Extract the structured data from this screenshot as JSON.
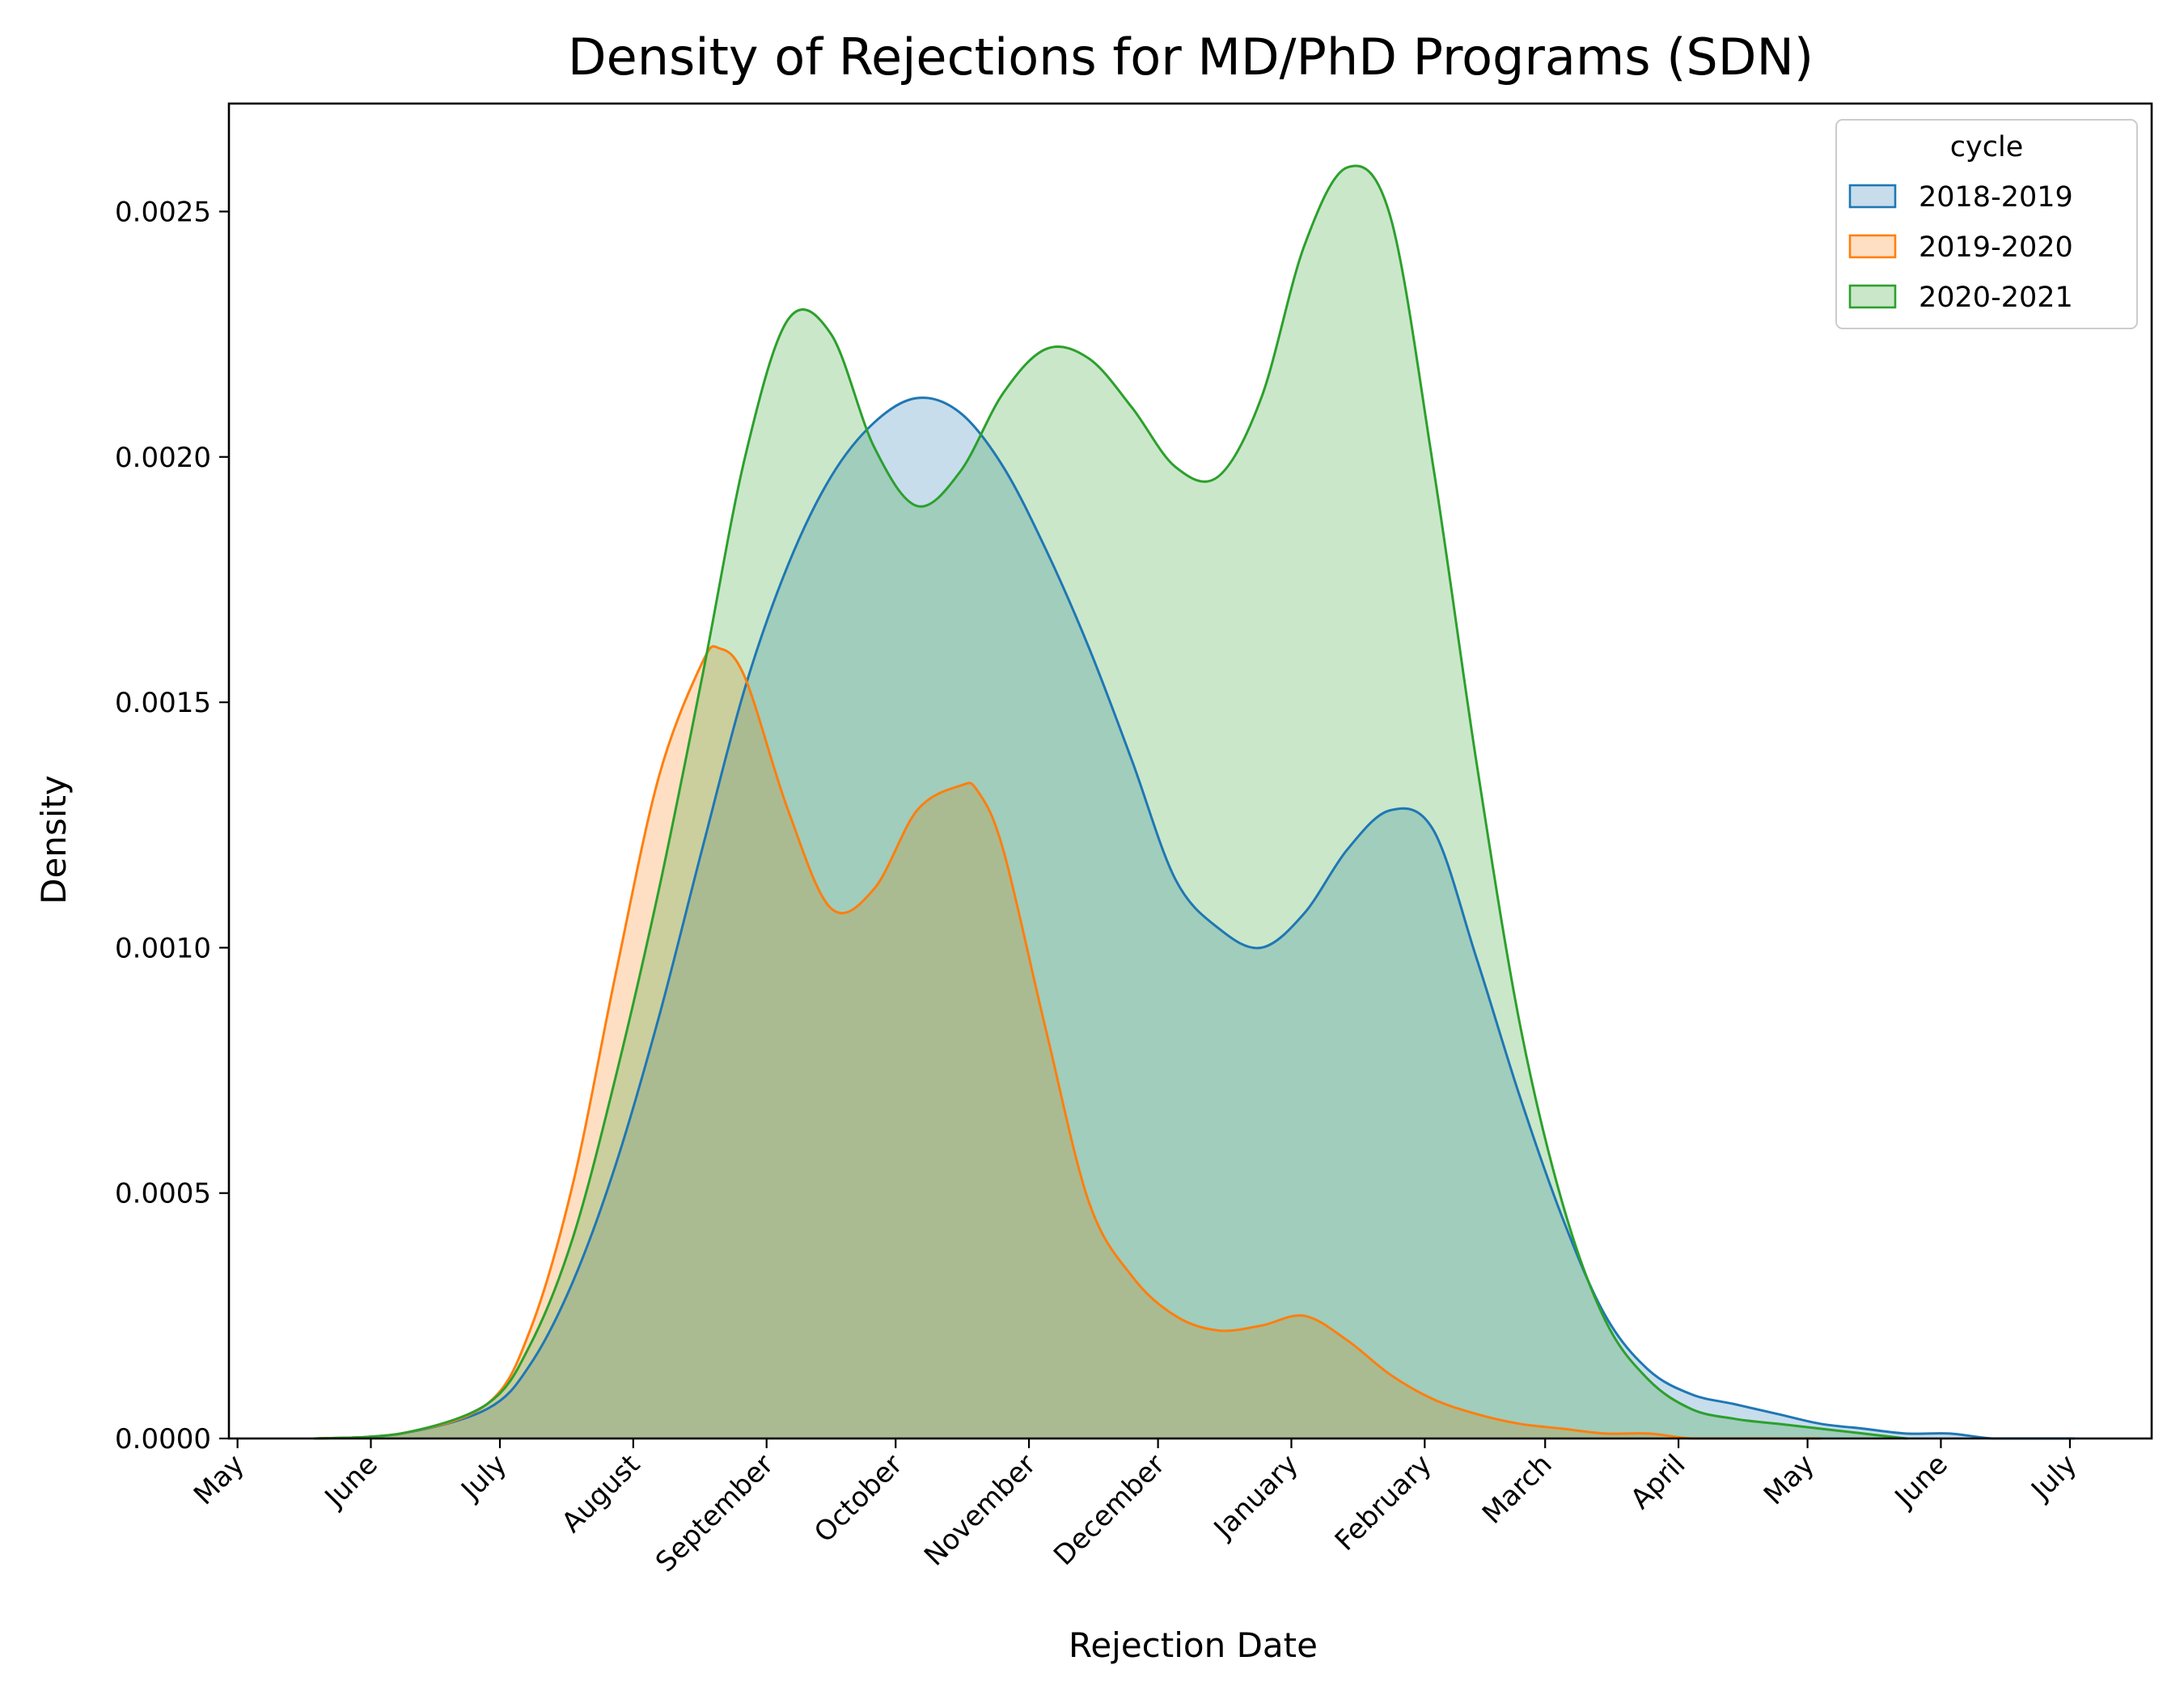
{
  "chart_data": {
    "type": "area",
    "title": "Density of Rejections for MD/PhD Programs (SDN)",
    "xlabel": "Rejection Date",
    "ylabel": "Density",
    "x_tick_labels": [
      "May",
      "June",
      "July",
      "August",
      "September",
      "October",
      "November",
      "December",
      "January",
      "February",
      "March",
      "April",
      "May",
      "June",
      "July"
    ],
    "x_tick_dates": [
      "2020-05-01",
      "2020-06-01",
      "2020-07-01",
      "2020-08-01",
      "2020-09-01",
      "2020-10-01",
      "2020-11-01",
      "2020-12-01",
      "2021-01-01",
      "2021-02-01",
      "2021-03-01",
      "2021-04-01",
      "2021-05-01",
      "2021-06-01",
      "2021-07-01"
    ],
    "xlim": [
      "2020-04-29",
      "2021-07-20"
    ],
    "ylim": [
      0,
      0.00272
    ],
    "y_ticks": [
      0.0,
      0.0005,
      0.001,
      0.0015,
      0.002,
      0.0025
    ],
    "y_tick_labels": [
      "0.0000",
      "0.0005",
      "0.0010",
      "0.0015",
      "0.0020",
      "0.0025"
    ],
    "grid": false,
    "legend": {
      "title": "cycle",
      "placement": "top-right"
    },
    "series": [
      {
        "name": "2018-2019",
        "color": "#1f77b4",
        "x": [
          "2020-05-19",
          "2020-06-08",
          "2020-06-28",
          "2020-07-08",
          "2020-07-18",
          "2020-07-28",
          "2020-08-07",
          "2020-08-17",
          "2020-08-27",
          "2020-09-06",
          "2020-09-16",
          "2020-09-26",
          "2020-10-06",
          "2020-10-16",
          "2020-10-26",
          "2020-11-05",
          "2020-11-15",
          "2020-11-25",
          "2020-12-05",
          "2020-12-15",
          "2020-12-25",
          "2021-01-04",
          "2021-01-14",
          "2021-01-24",
          "2021-02-03",
          "2021-02-13",
          "2021-02-23",
          "2021-03-05",
          "2021-03-15",
          "2021-03-25",
          "2021-04-04",
          "2021-04-14",
          "2021-04-24",
          "2021-05-04",
          "2021-05-14",
          "2021-05-24",
          "2021-06-03",
          "2021-06-13",
          "2021-06-23",
          "2021-07-02"
        ],
        "y": [
          0.0,
          1e-05,
          6e-05,
          0.00015,
          0.00032,
          0.00056,
          0.00086,
          0.0012,
          0.00153,
          0.00178,
          0.00196,
          0.00207,
          0.00212,
          0.00209,
          0.00198,
          0.00181,
          0.00161,
          0.00138,
          0.00114,
          0.00104,
          0.001,
          0.00107,
          0.0012,
          0.00128,
          0.00124,
          0.00098,
          0.0007,
          0.00045,
          0.00025,
          0.00014,
          9e-05,
          7e-05,
          5e-05,
          3e-05,
          2e-05,
          1e-05,
          1e-05,
          0.0,
          0.0,
          0.0
        ]
      },
      {
        "name": "2019-2020",
        "color": "#ff7f0e",
        "x": [
          "2020-05-19",
          "2020-06-08",
          "2020-06-28",
          "2020-07-08",
          "2020-07-18",
          "2020-07-28",
          "2020-08-07",
          "2020-08-17",
          "2020-08-21",
          "2020-08-27",
          "2020-09-06",
          "2020-09-16",
          "2020-09-26",
          "2020-10-06",
          "2020-10-16",
          "2020-10-20",
          "2020-10-26",
          "2020-11-05",
          "2020-11-15",
          "2020-11-25",
          "2020-12-05",
          "2020-12-15",
          "2020-12-25",
          "2021-01-04",
          "2021-01-14",
          "2021-01-24",
          "2021-02-03",
          "2021-02-13",
          "2021-02-23",
          "2021-03-05",
          "2021-03-15",
          "2021-03-25",
          "2021-04-04",
          "2021-04-14",
          "2021-04-24",
          "2021-05-04"
        ],
        "y": [
          0.0,
          1e-05,
          7e-05,
          0.00022,
          0.00052,
          0.00095,
          0.00135,
          0.00158,
          0.00161,
          0.00155,
          0.00128,
          0.00108,
          0.00112,
          0.00128,
          0.00133,
          0.00132,
          0.0012,
          0.00083,
          0.00048,
          0.00033,
          0.00025,
          0.00022,
          0.00023,
          0.00025,
          0.0002,
          0.00013,
          8e-05,
          5e-05,
          3e-05,
          2e-05,
          1e-05,
          1e-05,
          0.0,
          0.0,
          0.0,
          0.0
        ]
      },
      {
        "name": "2020-2021",
        "color": "#2ca02c",
        "x": [
          "2020-05-19",
          "2020-06-08",
          "2020-06-28",
          "2020-07-08",
          "2020-07-18",
          "2020-07-28",
          "2020-08-07",
          "2020-08-17",
          "2020-08-27",
          "2020-09-06",
          "2020-09-16",
          "2020-09-26",
          "2020-10-06",
          "2020-10-16",
          "2020-10-26",
          "2020-11-05",
          "2020-11-15",
          "2020-11-25",
          "2020-12-05",
          "2020-12-15",
          "2020-12-25",
          "2021-01-04",
          "2021-01-14",
          "2021-01-24",
          "2021-02-03",
          "2021-02-13",
          "2021-02-23",
          "2021-03-05",
          "2021-03-15",
          "2021-03-25",
          "2021-04-04",
          "2021-04-14",
          "2021-04-24",
          "2021-05-04",
          "2021-05-14",
          "2021-05-24"
        ],
        "y": [
          0.0,
          1e-05,
          7e-05,
          0.00019,
          0.00041,
          0.00074,
          0.00112,
          0.00155,
          0.002,
          0.00228,
          0.00225,
          0.00202,
          0.0019,
          0.00197,
          0.00213,
          0.00222,
          0.0022,
          0.0021,
          0.00198,
          0.00196,
          0.00212,
          0.00243,
          0.00259,
          0.00249,
          0.00198,
          0.00138,
          0.00085,
          0.00048,
          0.00024,
          0.00012,
          6e-05,
          4e-05,
          3e-05,
          2e-05,
          1e-05,
          0.0
        ]
      }
    ]
  }
}
